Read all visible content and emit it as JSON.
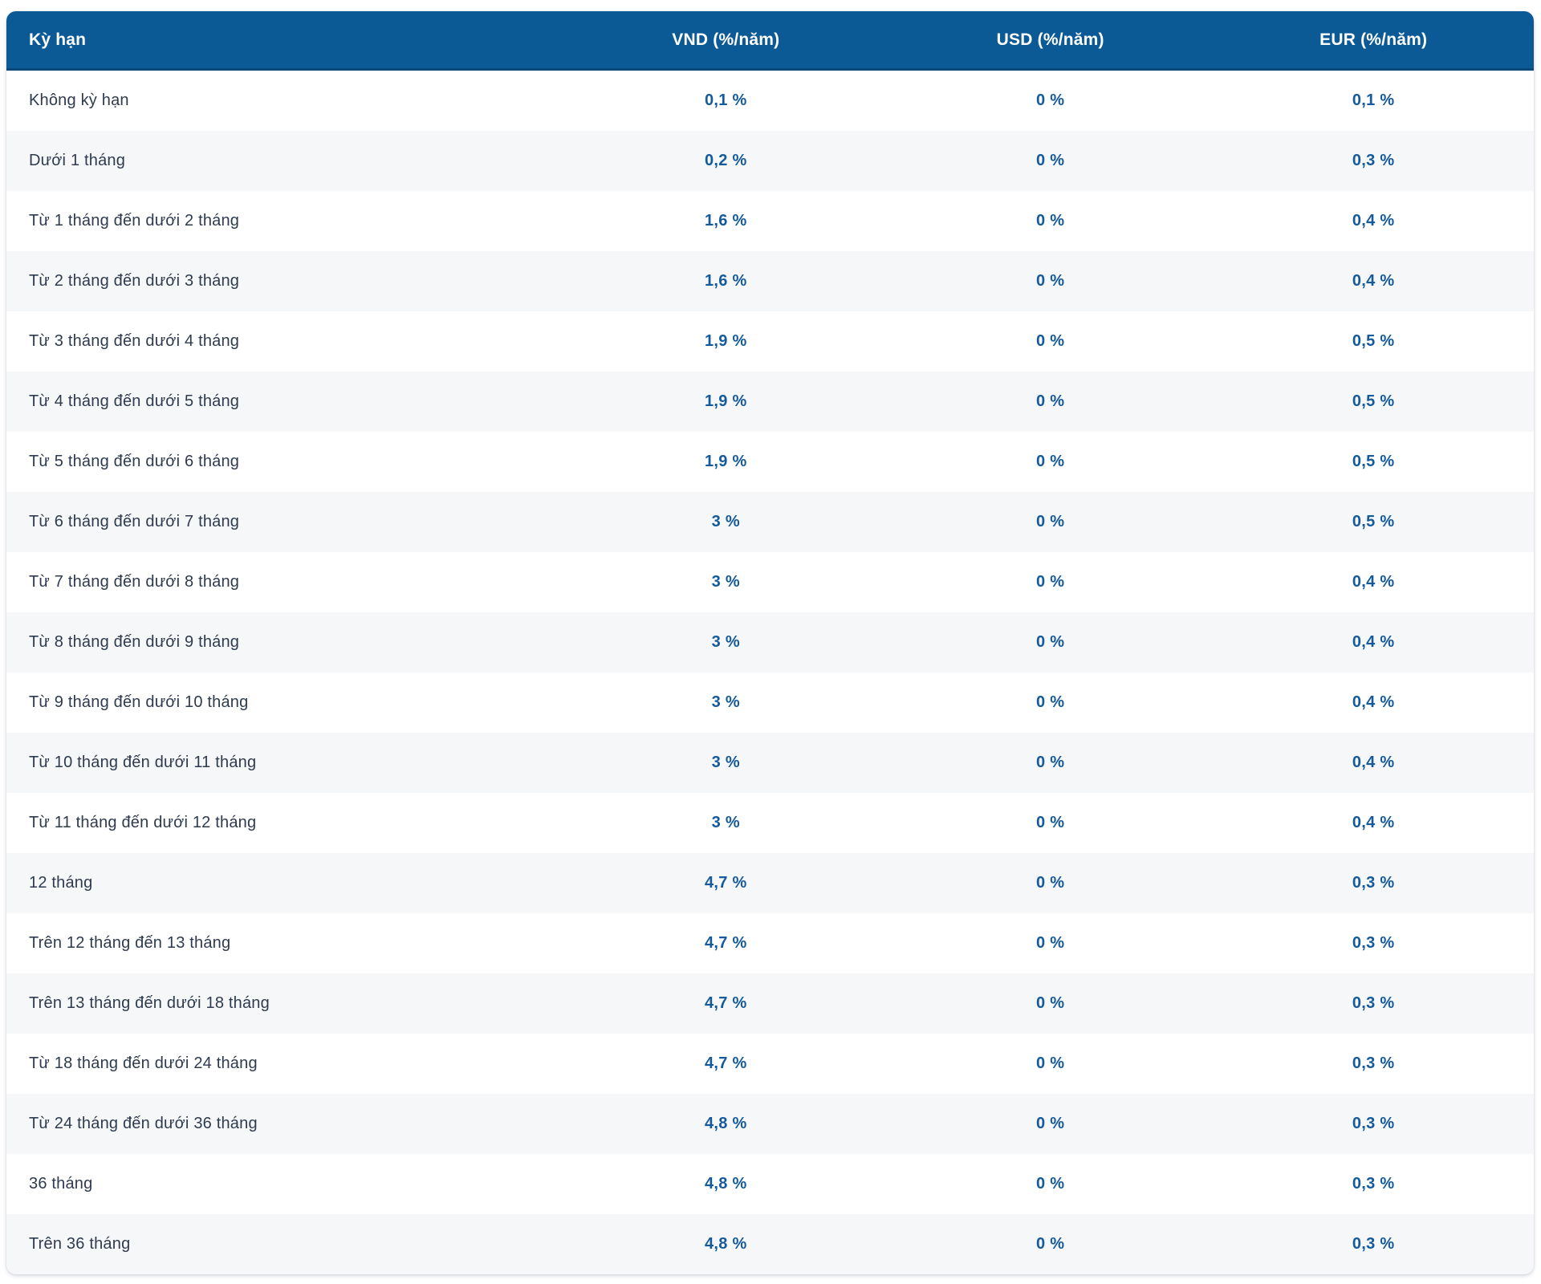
{
  "table": {
    "columns": [
      {
        "label": "Kỳ hạn"
      },
      {
        "label": "VND (%/năm)"
      },
      {
        "label": "USD (%/năm)"
      },
      {
        "label": "EUR (%/năm)"
      }
    ],
    "rows": [
      {
        "term": "Không kỳ hạn",
        "vnd": "0,1 %",
        "usd": "0 %",
        "eur": "0,1 %"
      },
      {
        "term": "Dưới 1 tháng",
        "vnd": "0,2 %",
        "usd": "0 %",
        "eur": "0,3 %"
      },
      {
        "term": "Từ 1 tháng đến dưới 2 tháng",
        "vnd": "1,6 %",
        "usd": "0 %",
        "eur": "0,4 %"
      },
      {
        "term": "Từ 2 tháng đến dưới 3 tháng",
        "vnd": "1,6 %",
        "usd": "0 %",
        "eur": "0,4 %"
      },
      {
        "term": "Từ 3 tháng đến dưới 4 tháng",
        "vnd": "1,9 %",
        "usd": "0 %",
        "eur": "0,5 %"
      },
      {
        "term": "Từ 4 tháng đến dưới 5 tháng",
        "vnd": "1,9 %",
        "usd": "0 %",
        "eur": "0,5 %"
      },
      {
        "term": "Từ 5 tháng đến dưới 6 tháng",
        "vnd": "1,9 %",
        "usd": "0 %",
        "eur": "0,5 %"
      },
      {
        "term": "Từ 6 tháng đến dưới 7 tháng",
        "vnd": "3 %",
        "usd": "0 %",
        "eur": "0,5 %"
      },
      {
        "term": "Từ 7 tháng đến dưới 8 tháng",
        "vnd": "3 %",
        "usd": "0 %",
        "eur": "0,4 %"
      },
      {
        "term": "Từ 8 tháng đến dưới 9 tháng",
        "vnd": "3 %",
        "usd": "0 %",
        "eur": "0,4 %"
      },
      {
        "term": "Từ 9 tháng đến dưới 10 tháng",
        "vnd": "3 %",
        "usd": "0 %",
        "eur": "0,4 %"
      },
      {
        "term": "Từ 10 tháng đến dưới 11 tháng",
        "vnd": "3 %",
        "usd": "0 %",
        "eur": "0,4 %"
      },
      {
        "term": "Từ 11 tháng đến dưới 12 tháng",
        "vnd": "3 %",
        "usd": "0 %",
        "eur": "0,4 %"
      },
      {
        "term": "12 tháng",
        "vnd": "4,7 %",
        "usd": "0 %",
        "eur": "0,3 %"
      },
      {
        "term": "Trên 12 tháng đến 13 tháng",
        "vnd": "4,7 %",
        "usd": "0 %",
        "eur": "0,3 %"
      },
      {
        "term": "Trên 13 tháng đến dưới 18 tháng",
        "vnd": "4,7 %",
        "usd": "0 %",
        "eur": "0,3 %"
      },
      {
        "term": "Từ 18 tháng đến dưới 24 tháng",
        "vnd": "4,7 %",
        "usd": "0 %",
        "eur": "0,3 %"
      },
      {
        "term": "Từ 24 tháng đến dưới 36 tháng",
        "vnd": "4,8 %",
        "usd": "0 %",
        "eur": "0,3 %"
      },
      {
        "term": "36 tháng",
        "vnd": "4,8 %",
        "usd": "0 %",
        "eur": "0,3 %"
      },
      {
        "term": "Trên 36 tháng",
        "vnd": "4,8 %",
        "usd": "0 %",
        "eur": "0,3 %"
      }
    ]
  },
  "colors": {
    "header_bg": "#0B5A96",
    "header_border": "#09497A",
    "header_text": "#FFFFFF",
    "label_text": "#2E3B4E",
    "value_text": "#155A9B",
    "row_bg": "#FFFFFF",
    "row_alt_bg": "#F6F7F9",
    "page_bg": "#FFFFFF"
  }
}
